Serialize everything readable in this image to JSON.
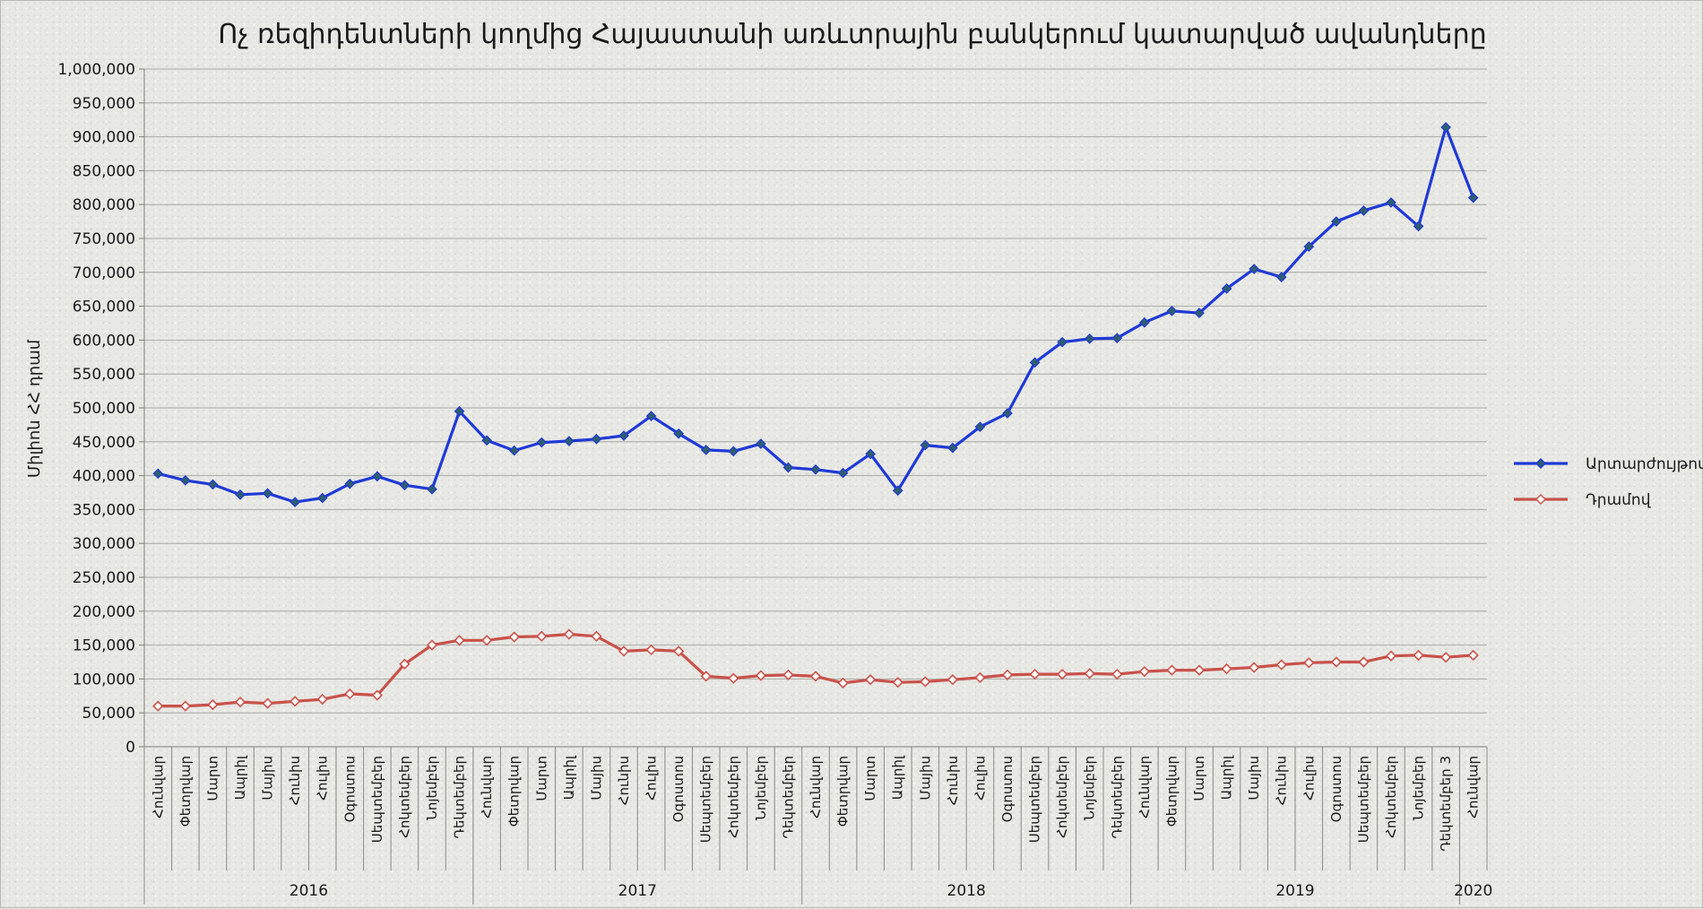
{
  "chart_data": {
    "type": "line",
    "title": "Ոչ ռեզիդենտների կողմից Հայաստանի առևտրային բանկերում կատարված ավանդները",
    "ylabel": "Միլիոն ՀՀ դրամ",
    "ylim": [
      0,
      1000000
    ],
    "yticks": [
      0,
      50000,
      100000,
      150000,
      200000,
      250000,
      300000,
      350000,
      400000,
      450000,
      500000,
      550000,
      600000,
      650000,
      700000,
      750000,
      800000,
      850000,
      900000,
      950000,
      1000000
    ],
    "ytick_labels": [
      "0",
      "50,000",
      "100,000",
      "150,000",
      "200,000",
      "250,000",
      "300,000",
      "350,000",
      "400,000",
      "450,000",
      "500,000",
      "550,000",
      "600,000",
      "650,000",
      "700,000",
      "750,000",
      "800,000",
      "850,000",
      "900,000",
      "950,000",
      "1,000,000"
    ],
    "grid": true,
    "legend_position": "right",
    "categories": [
      "Հունվար",
      "Փետրվար",
      "Մարտ",
      "Ապրիլ",
      "Մայիս",
      "Հունիս",
      "Հուլիս",
      "Օգոստոս",
      "Սեպտեմբեր",
      "Հոկտեմբեր",
      "Նոյեմբեր",
      "Դեկտեմբեր",
      "Հունվար",
      "Փետրվար",
      "Մարտ",
      "Ապրիլ",
      "Մայիս",
      "Հունիս",
      "Հուլիս",
      "Օգոստոս",
      "Սեպտեմբեր",
      "Հոկտեմբեր",
      "Նոյեմբեր",
      "Դեկտեմբեր",
      "Հունվար",
      "Փետրվար",
      "Մարտ",
      "Ապրիլ",
      "Մայիս",
      "Հունիս",
      "Հուլիս",
      "Օգոստոս",
      "Սեպտեմբեր",
      "Հոկտեմբեր",
      "Նոյեմբեր",
      "Դեկտեմբեր",
      "Հունվար",
      "Փետրվար",
      "Մարտ",
      "Ապրիլ",
      "Մայիս",
      "Հունիս",
      "Հուլիս",
      "Օգոստոս",
      "Սեպտեմբեր",
      "Հոկտեմբեր",
      "Նոյեմբեր",
      "Դեկտեմբեր 3",
      "Հունվար"
    ],
    "year_groups": [
      {
        "label": "2016",
        "count": 12
      },
      {
        "label": "2017",
        "count": 12
      },
      {
        "label": "2018",
        "count": 12
      },
      {
        "label": "2019",
        "count": 12
      },
      {
        "label": "2020",
        "count": 1
      }
    ],
    "series": [
      {
        "name": "Արտարժույթով",
        "color": "#1f3ad6",
        "marker": "diamond-filled",
        "values": [
          403000,
          393000,
          387000,
          372000,
          374000,
          361000,
          367000,
          388000,
          399000,
          386000,
          380000,
          495000,
          452000,
          437000,
          449000,
          451000,
          454000,
          459000,
          488000,
          462000,
          438000,
          436000,
          447000,
          412000,
          409000,
          404000,
          432000,
          378000,
          445000,
          441000,
          472000,
          492000,
          567000,
          597000,
          602000,
          603000,
          626000,
          643000,
          640000,
          676000,
          705000,
          693000,
          738000,
          775000,
          791000,
          803000,
          768000,
          914000,
          810000
        ]
      },
      {
        "name": "Դրամով",
        "color": "#c8524a",
        "marker": "diamond-hollow",
        "values": [
          60000,
          60000,
          62000,
          66000,
          64000,
          67000,
          70000,
          78000,
          76000,
          122000,
          150000,
          157000,
          157000,
          162000,
          163000,
          166000,
          163000,
          141000,
          143000,
          141000,
          104000,
          101000,
          105000,
          106000,
          104000,
          94000,
          99000,
          95000,
          96000,
          99000,
          102000,
          106000,
          107000,
          107000,
          108000,
          107000,
          111000,
          113000,
          113000,
          115000,
          117000,
          121000,
          124000,
          125000,
          125000,
          134000,
          135000,
          132000,
          135000
        ]
      }
    ]
  }
}
